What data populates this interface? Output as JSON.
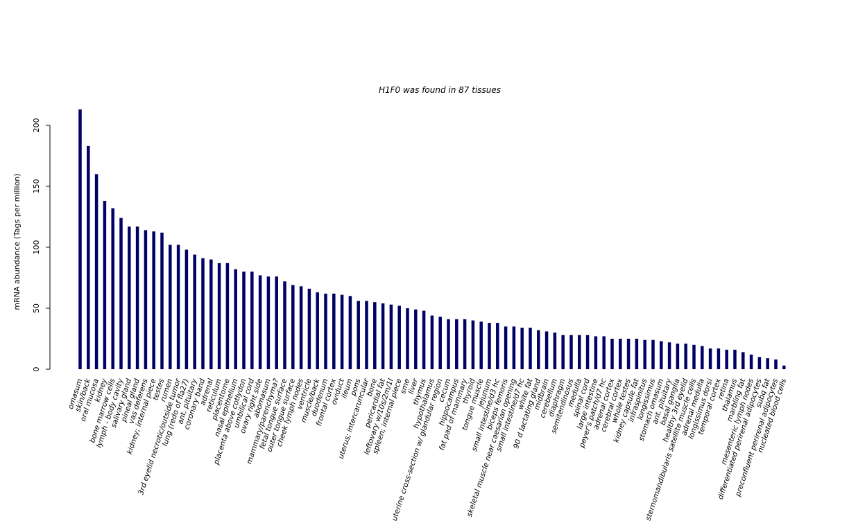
{
  "chart_data": {
    "type": "bar",
    "title": "H1F0  was found in  87  tissues",
    "xlabel": "",
    "ylabel": "mRNA abundance (Tags per million)",
    "ylim": [
      0,
      213
    ],
    "yticks": [
      0,
      50,
      100,
      150,
      200
    ],
    "bar_color": "#000066",
    "grid": false,
    "legend": "none",
    "categories": [
      "omasum",
      "skin/back",
      "oral mucosa",
      "kidney",
      "bone marrow cells",
      "lymph - body cavity",
      "salivary gland",
      "pineal gland",
      "vas deferens",
      "kidney; internal piece",
      "testes",
      "rumen",
      "3rd eyelid necrotic/outside tumor",
      "lung (redo of fla27)",
      "ant. pituitary",
      "coronary band",
      "adrenal",
      "reticulum",
      "placentome",
      "nasal epithelium",
      "placenta above cotlydon",
      "umbilical cord",
      "ovary right side",
      "abomasum",
      "mammary/parenchyma?",
      "fetal tongue surface",
      "outer tongue surface",
      "cheek lymph nodes",
      "ventricle",
      "muscle/back",
      "duodenum",
      "frontal cortex",
      "oviduct",
      "ileum",
      "pons",
      "uterus; intercaruncular",
      "bone",
      "pericardial fat",
      "leftovary w/10s/2m/1l",
      "spleen; internal piece",
      "sme",
      "liver",
      "thymus",
      "hypothalamus",
      "uterine cross-section w/ glandular region",
      "cecum",
      "hippocampus",
      "fat pad of mammary",
      "thyroid",
      "tongue muscle",
      "jejunum",
      "small intestine/d3 hc",
      "biceps femoris",
      "skeletal muscle near caesarian opening",
      "small intestine/d7 hc",
      "white fat",
      "90 d lactating gland",
      "midbrain",
      "cerebellum",
      "diaphragm",
      "semitendinosus",
      "medulla",
      "spinal cord",
      "large intestine",
      "peyer's patch/d7 hc",
      "adrenal cortex",
      "cerebral cortex",
      "whole testes",
      "kidney capsule fat",
      "infraspinitus",
      "longissimus",
      "stomach omasum",
      "ant. pituitary",
      "basal ganglia",
      "healthy 3rd eyelid",
      "sternomandibularis satellite muscle cells",
      "adrenal medulla",
      "longissimus dorsi",
      "temporal cortex",
      "retina",
      "thalamus",
      "marbling fat",
      "mesenteric lymph nodes",
      "differentiated perirenal adipocytes",
      "subq fat",
      "preconfluent perirenal adipocytes",
      "nucleated blood cells"
    ],
    "values": [
      213,
      183,
      160,
      138,
      132,
      124,
      117,
      117,
      114,
      113,
      112,
      102,
      102,
      98,
      94,
      91,
      90,
      87,
      87,
      82,
      80,
      80,
      77,
      76,
      76,
      72,
      69,
      68,
      66,
      63,
      62,
      62,
      61,
      60,
      56,
      56,
      55,
      54,
      53,
      52,
      50,
      49,
      48,
      44,
      43,
      41,
      41,
      41,
      40,
      39,
      38,
      38,
      35,
      35,
      34,
      34,
      32,
      31,
      30,
      28,
      28,
      28,
      28,
      27,
      27,
      25,
      25,
      25,
      25,
      24,
      24,
      23,
      22,
      21,
      21,
      20,
      19,
      17,
      17,
      16,
      16,
      14,
      12,
      10,
      9,
      8,
      3
    ]
  }
}
